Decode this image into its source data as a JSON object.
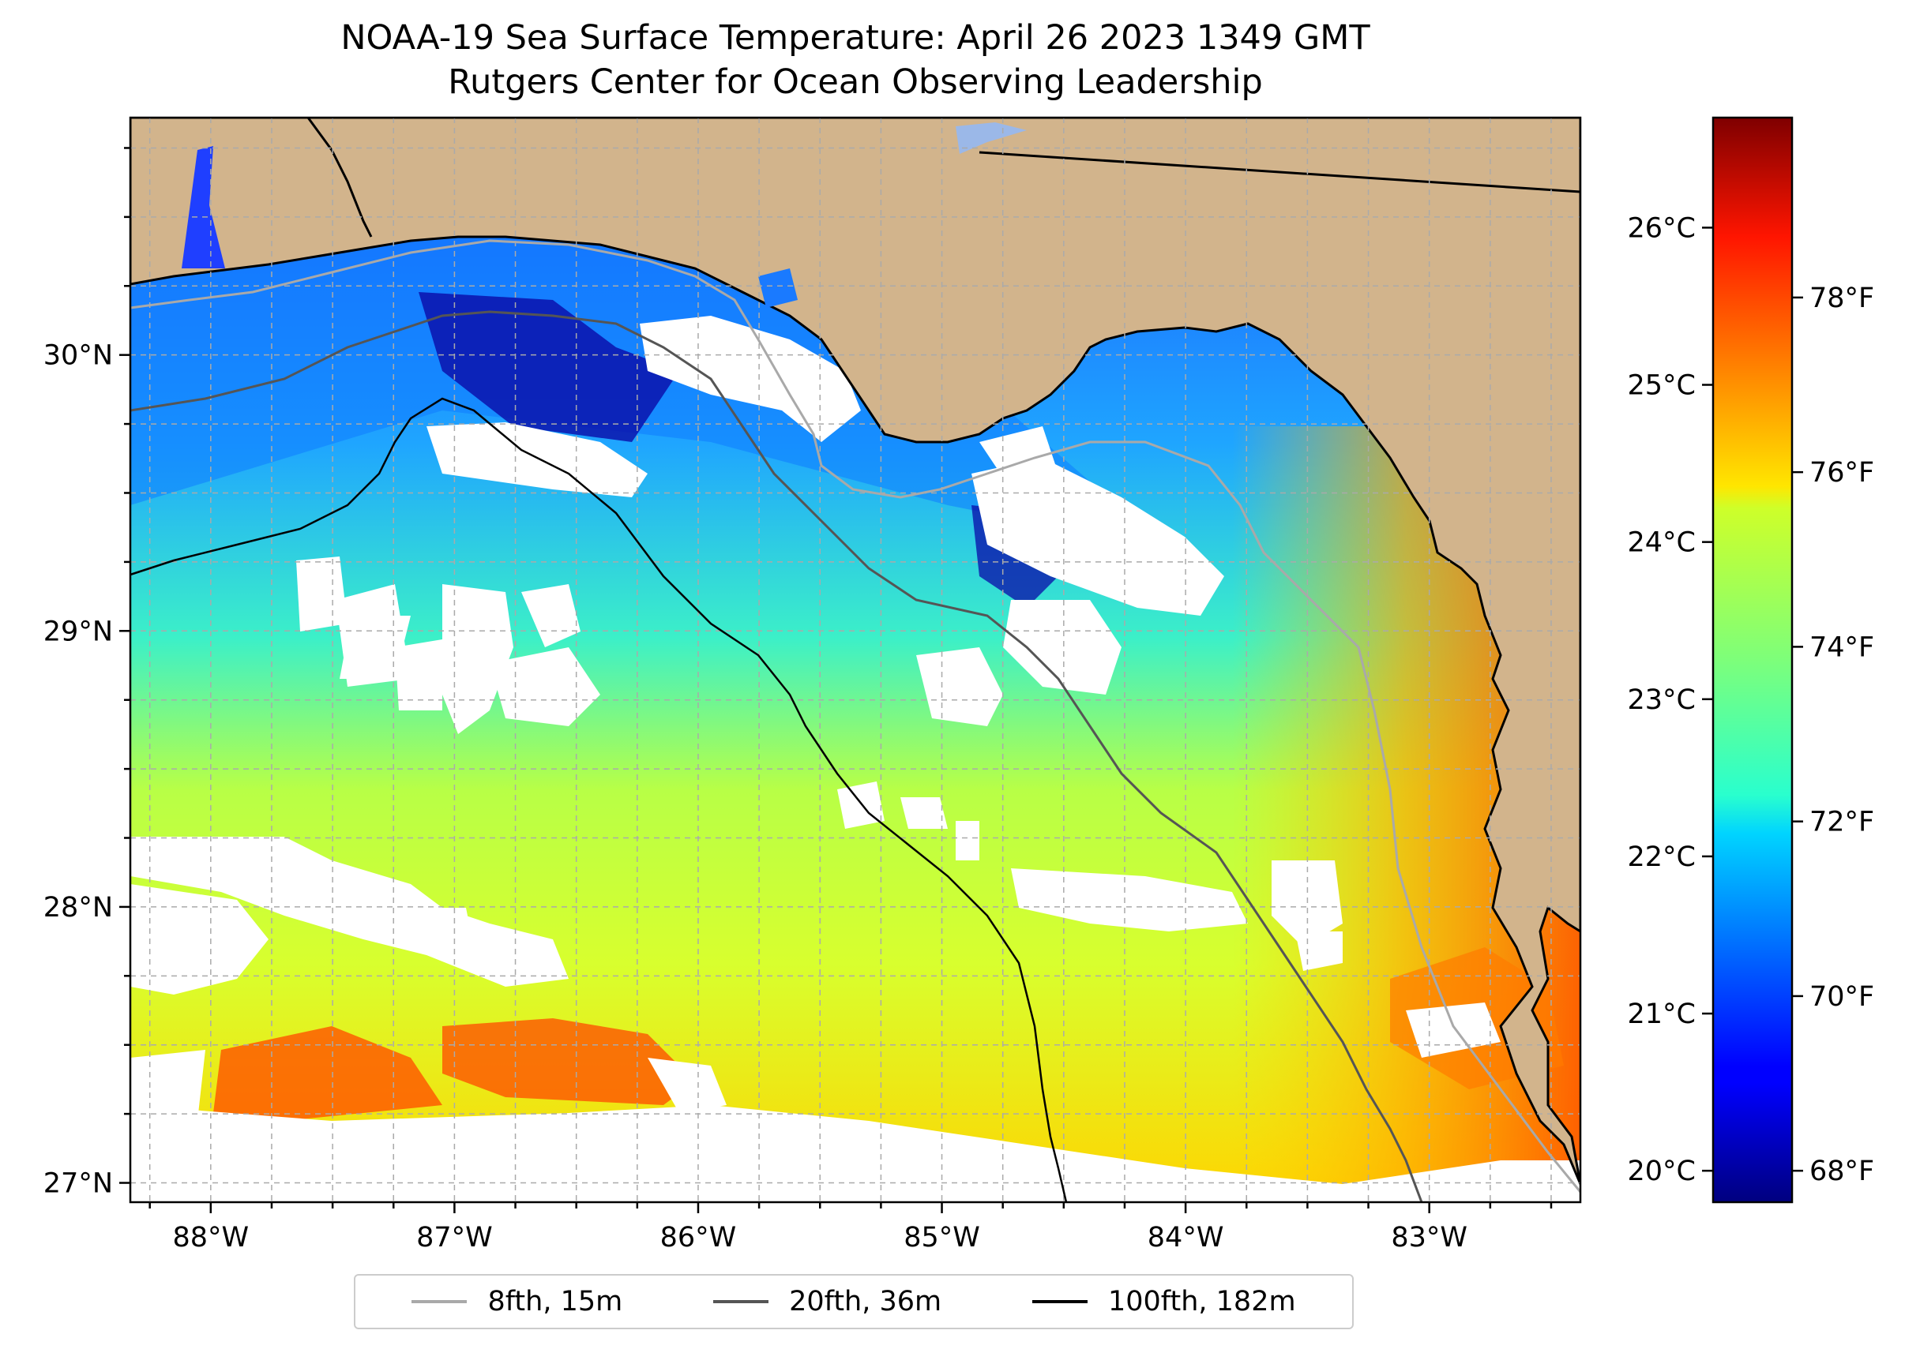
{
  "title": "NOAA-19 Sea Surface Temperature: April 26 2023 1349 GMT",
  "subtitle": "Rutgers Center for Ocean Observing Leadership",
  "map": {
    "lon_range": [
      -88.33,
      -82.38
    ],
    "lat_range": [
      26.93,
      30.86
    ],
    "lon_ticks": [
      {
        "value": -88,
        "label": "88°W"
      },
      {
        "value": -87,
        "label": "87°W"
      },
      {
        "value": -86,
        "label": "86°W"
      },
      {
        "value": -85,
        "label": "85°W"
      },
      {
        "value": -84,
        "label": "84°W"
      },
      {
        "value": -83,
        "label": "83°W"
      }
    ],
    "lat_ticks": [
      {
        "value": 30,
        "label": "30°N"
      },
      {
        "value": 29,
        "label": "29°N"
      },
      {
        "value": 28,
        "label": "28°N"
      },
      {
        "value": 27,
        "label": "27°N"
      }
    ],
    "land_color": "#d2b48c",
    "cloud_color": "#ffffff"
  },
  "colorbar": {
    "colormap": "jet",
    "celsius_range": [
      19.8,
      26.7
    ],
    "celsius_ticks": [
      {
        "value": 20,
        "label": "20°C"
      },
      {
        "value": 21,
        "label": "21°C"
      },
      {
        "value": 22,
        "label": "22°C"
      },
      {
        "value": 23,
        "label": "23°C"
      },
      {
        "value": 24,
        "label": "24°C"
      },
      {
        "value": 25,
        "label": "25°C"
      },
      {
        "value": 26,
        "label": "26°C"
      }
    ],
    "fahrenheit_ticks": [
      {
        "value": 68,
        "label": "68°F"
      },
      {
        "value": 70,
        "label": "70°F"
      },
      {
        "value": 72,
        "label": "72°F"
      },
      {
        "value": 74,
        "label": "74°F"
      },
      {
        "value": 76,
        "label": "76°F"
      },
      {
        "value": 78,
        "label": "78°F"
      }
    ]
  },
  "legend": [
    {
      "label": "8fth, 15m",
      "color": "#a9a9a9"
    },
    {
      "label": "20fth, 36m",
      "color": "#555555"
    },
    {
      "label": "100fth, 182m",
      "color": "#000000"
    }
  ]
}
